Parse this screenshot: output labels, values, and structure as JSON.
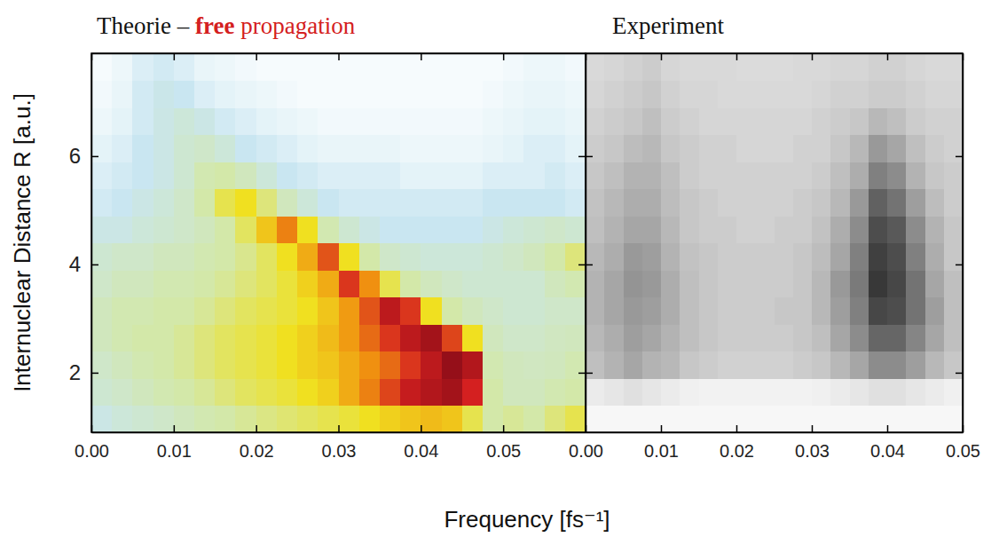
{
  "chart_data": [
    {
      "type": "heatmap",
      "title": "Theorie – free propagation",
      "color": "#d42020",
      "xlabel": "Frequency [fs⁻¹]",
      "ylabel": "Internuclear Distance R [a.u.]",
      "xlim": [
        0,
        0.06
      ],
      "ylim": [
        0.9,
        7.9
      ],
      "xticks": [
        {
          "value": 0,
          "label": "0.00"
        },
        {
          "value": 0.01,
          "label": "0.01"
        },
        {
          "value": 0.02,
          "label": "0.02"
        },
        {
          "value": 0.03,
          "label": "0.03"
        },
        {
          "value": 0.04,
          "label": "0.04"
        },
        {
          "value": 0.05,
          "label": "0.05"
        }
      ],
      "yticks": [
        2,
        4,
        6
      ],
      "zlim": [
        0,
        1
      ],
      "x_bins": [
        0,
        0.0025,
        0.005,
        0.0075,
        0.01,
        0.0125,
        0.015,
        0.0175,
        0.02,
        0.0225,
        0.025,
        0.0275,
        0.03,
        0.0325,
        0.035,
        0.0375,
        0.04,
        0.0425,
        0.045,
        0.0475,
        0.05,
        0.0525,
        0.055,
        0.0575,
        0.06
      ],
      "y_bins": [
        0.9,
        1.4,
        1.9,
        2.4,
        2.9,
        3.4,
        3.9,
        4.4,
        4.9,
        5.4,
        5.9,
        6.4,
        6.9,
        7.4,
        7.9
      ],
      "z": [
        [
          0.15,
          0.18,
          0.2,
          0.22,
          0.25,
          0.28,
          0.3,
          0.32,
          0.34,
          0.36,
          0.38,
          0.4,
          0.42,
          0.45,
          0.48,
          0.5,
          0.52,
          0.5,
          0.4,
          0.3,
          0.32,
          0.3,
          0.35,
          0.4
        ],
        [
          0.2,
          0.22,
          0.25,
          0.28,
          0.3,
          0.32,
          0.35,
          0.38,
          0.4,
          0.42,
          0.45,
          0.48,
          0.55,
          0.62,
          0.7,
          0.78,
          0.82,
          0.85,
          0.75,
          0.3,
          0.25,
          0.25,
          0.28,
          0.3
        ],
        [
          0.22,
          0.25,
          0.28,
          0.3,
          0.32,
          0.35,
          0.38,
          0.4,
          0.42,
          0.45,
          0.48,
          0.5,
          0.55,
          0.6,
          0.65,
          0.72,
          0.8,
          0.88,
          0.82,
          0.28,
          0.25,
          0.24,
          0.25,
          0.28
        ],
        [
          0.25,
          0.28,
          0.3,
          0.3,
          0.32,
          0.35,
          0.38,
          0.4,
          0.42,
          0.45,
          0.48,
          0.52,
          0.58,
          0.65,
          0.72,
          0.8,
          0.85,
          0.7,
          0.45,
          0.25,
          0.22,
          0.22,
          0.24,
          0.25
        ],
        [
          0.25,
          0.28,
          0.28,
          0.3,
          0.3,
          0.32,
          0.35,
          0.38,
          0.4,
          0.42,
          0.45,
          0.5,
          0.58,
          0.68,
          0.8,
          0.72,
          0.45,
          0.3,
          0.25,
          0.22,
          0.2,
          0.2,
          0.22,
          0.22
        ],
        [
          0.22,
          0.25,
          0.25,
          0.28,
          0.28,
          0.3,
          0.32,
          0.35,
          0.38,
          0.42,
          0.48,
          0.55,
          0.72,
          0.6,
          0.4,
          0.3,
          0.25,
          0.22,
          0.2,
          0.2,
          0.2,
          0.2,
          0.25,
          0.28
        ],
        [
          0.2,
          0.22,
          0.22,
          0.25,
          0.25,
          0.28,
          0.3,
          0.33,
          0.38,
          0.45,
          0.55,
          0.68,
          0.45,
          0.3,
          0.22,
          0.2,
          0.18,
          0.18,
          0.18,
          0.2,
          0.22,
          0.25,
          0.3,
          0.35
        ],
        [
          0.15,
          0.15,
          0.18,
          0.2,
          0.22,
          0.25,
          0.3,
          0.38,
          0.5,
          0.62,
          0.45,
          0.28,
          0.2,
          0.15,
          0.12,
          0.12,
          0.12,
          0.12,
          0.12,
          0.15,
          0.18,
          0.2,
          0.22,
          0.2
        ],
        [
          0.1,
          0.12,
          0.15,
          0.18,
          0.22,
          0.3,
          0.4,
          0.45,
          0.35,
          0.25,
          0.18,
          0.12,
          0.1,
          0.1,
          0.1,
          0.1,
          0.1,
          0.1,
          0.1,
          0.12,
          0.12,
          0.12,
          0.12,
          0.1
        ],
        [
          0.08,
          0.1,
          0.12,
          0.15,
          0.2,
          0.28,
          0.3,
          0.25,
          0.18,
          0.12,
          0.1,
          0.08,
          0.08,
          0.08,
          0.08,
          0.06,
          0.06,
          0.06,
          0.06,
          0.08,
          0.08,
          0.08,
          0.1,
          0.08
        ],
        [
          0.06,
          0.08,
          0.12,
          0.15,
          0.2,
          0.22,
          0.18,
          0.12,
          0.1,
          0.08,
          0.06,
          0.05,
          0.05,
          0.05,
          0.05,
          0.04,
          0.04,
          0.04,
          0.04,
          0.05,
          0.06,
          0.08,
          0.08,
          0.06
        ],
        [
          0.04,
          0.06,
          0.1,
          0.15,
          0.18,
          0.15,
          0.1,
          0.08,
          0.06,
          0.05,
          0.04,
          0.03,
          0.03,
          0.03,
          0.03,
          0.03,
          0.03,
          0.03,
          0.03,
          0.04,
          0.05,
          0.06,
          0.06,
          0.05
        ],
        [
          0.03,
          0.05,
          0.1,
          0.14,
          0.12,
          0.08,
          0.06,
          0.05,
          0.04,
          0.03,
          0.02,
          0.02,
          0.02,
          0.02,
          0.02,
          0.02,
          0.02,
          0.02,
          0.02,
          0.03,
          0.04,
          0.05,
          0.05,
          0.04
        ],
        [
          0.02,
          0.04,
          0.08,
          0.1,
          0.08,
          0.05,
          0.04,
          0.03,
          0.02,
          0.02,
          0.02,
          0.02,
          0.02,
          0.02,
          0.02,
          0.02,
          0.02,
          0.02,
          0.02,
          0.02,
          0.03,
          0.04,
          0.04,
          0.03
        ]
      ]
    },
    {
      "type": "heatmap",
      "title": "Experiment",
      "color": "#000000",
      "tick_labels": "x",
      "xlim": [
        0,
        0.05
      ],
      "ylim": [
        0.9,
        7.9
      ],
      "xticks": [
        {
          "value": 0,
          "label": "0.00"
        },
        {
          "value": 0.01,
          "label": "0.01"
        },
        {
          "value": 0.02,
          "label": "0.02"
        },
        {
          "value": 0.03,
          "label": "0.03"
        },
        {
          "value": 0.04,
          "label": "0.04"
        },
        {
          "value": 0.05,
          "label": "0.05"
        }
      ],
      "yticks": [
        2,
        4,
        6
      ],
      "zlim": [
        0,
        1
      ],
      "x_bins": [
        0,
        0.0025,
        0.005,
        0.0075,
        0.01,
        0.0125,
        0.015,
        0.0175,
        0.02,
        0.0225,
        0.025,
        0.0275,
        0.03,
        0.0325,
        0.035,
        0.0375,
        0.04,
        0.0425,
        0.045,
        0.0475,
        0.05
      ],
      "y_bins": [
        0.9,
        1.4,
        1.9,
        2.4,
        2.9,
        3.4,
        3.9,
        4.4,
        4.9,
        5.4,
        5.9,
        6.4,
        6.9,
        7.4,
        7.9
      ],
      "z": [
        [
          0.03,
          0.03,
          0.03,
          0.03,
          0.03,
          0.03,
          0.03,
          0.03,
          0.03,
          0.03,
          0.03,
          0.03,
          0.03,
          0.03,
          0.03,
          0.03,
          0.03,
          0.03,
          0.03,
          0.03
        ],
        [
          0.08,
          0.1,
          0.12,
          0.1,
          0.08,
          0.06,
          0.05,
          0.05,
          0.05,
          0.05,
          0.05,
          0.05,
          0.06,
          0.08,
          0.1,
          0.12,
          0.12,
          0.1,
          0.08,
          0.06
        ],
        [
          0.25,
          0.3,
          0.35,
          0.3,
          0.28,
          0.22,
          0.2,
          0.18,
          0.18,
          0.18,
          0.18,
          0.2,
          0.22,
          0.28,
          0.35,
          0.45,
          0.45,
          0.38,
          0.28,
          0.22
        ],
        [
          0.28,
          0.32,
          0.38,
          0.35,
          0.3,
          0.25,
          0.22,
          0.2,
          0.2,
          0.2,
          0.2,
          0.22,
          0.25,
          0.35,
          0.45,
          0.6,
          0.6,
          0.48,
          0.35,
          0.25
        ],
        [
          0.3,
          0.35,
          0.4,
          0.38,
          0.32,
          0.25,
          0.22,
          0.2,
          0.2,
          0.2,
          0.22,
          0.22,
          0.28,
          0.38,
          0.5,
          0.72,
          0.7,
          0.55,
          0.38,
          0.25
        ],
        [
          0.3,
          0.35,
          0.42,
          0.4,
          0.32,
          0.25,
          0.22,
          0.2,
          0.2,
          0.2,
          0.2,
          0.22,
          0.28,
          0.4,
          0.52,
          0.78,
          0.72,
          0.55,
          0.35,
          0.25
        ],
        [
          0.28,
          0.32,
          0.4,
          0.38,
          0.3,
          0.24,
          0.22,
          0.2,
          0.2,
          0.2,
          0.2,
          0.22,
          0.26,
          0.35,
          0.5,
          0.75,
          0.7,
          0.5,
          0.32,
          0.22
        ],
        [
          0.25,
          0.3,
          0.35,
          0.35,
          0.28,
          0.22,
          0.2,
          0.2,
          0.18,
          0.18,
          0.2,
          0.2,
          0.24,
          0.32,
          0.45,
          0.7,
          0.65,
          0.45,
          0.3,
          0.22
        ],
        [
          0.24,
          0.28,
          0.32,
          0.32,
          0.26,
          0.22,
          0.2,
          0.18,
          0.18,
          0.18,
          0.18,
          0.2,
          0.22,
          0.28,
          0.4,
          0.62,
          0.55,
          0.38,
          0.26,
          0.2
        ],
        [
          0.22,
          0.25,
          0.3,
          0.3,
          0.25,
          0.2,
          0.18,
          0.18,
          0.18,
          0.18,
          0.18,
          0.18,
          0.2,
          0.25,
          0.32,
          0.5,
          0.45,
          0.3,
          0.22,
          0.2
        ],
        [
          0.2,
          0.22,
          0.26,
          0.28,
          0.22,
          0.2,
          0.18,
          0.18,
          0.16,
          0.16,
          0.16,
          0.18,
          0.18,
          0.22,
          0.28,
          0.4,
          0.35,
          0.25,
          0.2,
          0.18
        ],
        [
          0.18,
          0.2,
          0.22,
          0.25,
          0.2,
          0.18,
          0.16,
          0.16,
          0.16,
          0.16,
          0.16,
          0.16,
          0.18,
          0.2,
          0.22,
          0.28,
          0.25,
          0.2,
          0.18,
          0.18
        ],
        [
          0.16,
          0.18,
          0.2,
          0.22,
          0.18,
          0.16,
          0.16,
          0.15,
          0.15,
          0.15,
          0.15,
          0.15,
          0.16,
          0.18,
          0.18,
          0.2,
          0.2,
          0.18,
          0.16,
          0.16
        ],
        [
          0.15,
          0.16,
          0.18,
          0.2,
          0.16,
          0.15,
          0.15,
          0.15,
          0.14,
          0.14,
          0.14,
          0.15,
          0.15,
          0.16,
          0.16,
          0.18,
          0.18,
          0.16,
          0.15,
          0.15
        ]
      ]
    }
  ]
}
